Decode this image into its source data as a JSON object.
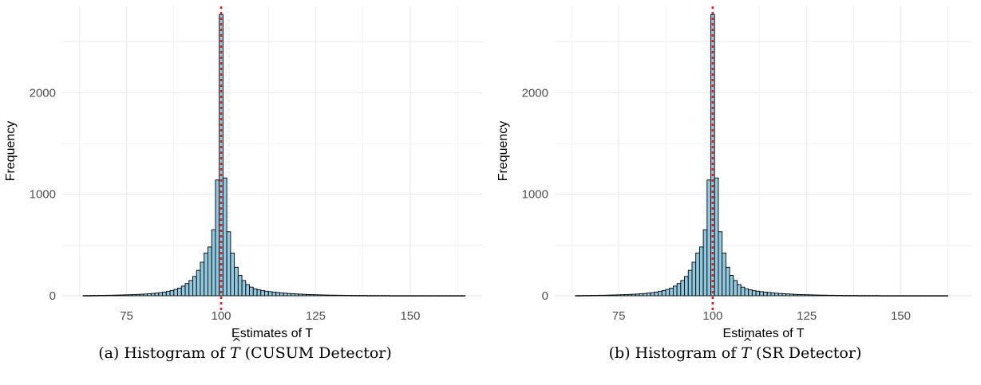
{
  "chart_data": [
    {
      "type": "bar",
      "panel_id": "a",
      "xlabel": "Estimates of T",
      "ylabel": "Frequency",
      "xlim": [
        58,
        169
      ],
      "ylim": [
        0,
        2850
      ],
      "x_ticks": [
        75,
        100,
        125,
        150
      ],
      "y_ticks": [
        0,
        1000,
        2000
      ],
      "reference_line": 100,
      "bin_width": 1,
      "bins": [
        {
          "x": 64,
          "value": 2
        },
        {
          "x": 65,
          "value": 2
        },
        {
          "x": 66,
          "value": 3
        },
        {
          "x": 67,
          "value": 3
        },
        {
          "x": 68,
          "value": 4
        },
        {
          "x": 69,
          "value": 4
        },
        {
          "x": 70,
          "value": 5
        },
        {
          "x": 71,
          "value": 5
        },
        {
          "x": 72,
          "value": 6
        },
        {
          "x": 73,
          "value": 7
        },
        {
          "x": 74,
          "value": 8
        },
        {
          "x": 75,
          "value": 9
        },
        {
          "x": 76,
          "value": 10
        },
        {
          "x": 77,
          "value": 11
        },
        {
          "x": 78,
          "value": 13
        },
        {
          "x": 79,
          "value": 15
        },
        {
          "x": 80,
          "value": 17
        },
        {
          "x": 81,
          "value": 19
        },
        {
          "x": 82,
          "value": 22
        },
        {
          "x": 83,
          "value": 26
        },
        {
          "x": 84,
          "value": 30
        },
        {
          "x": 85,
          "value": 36
        },
        {
          "x": 86,
          "value": 43
        },
        {
          "x": 87,
          "value": 52
        },
        {
          "x": 88,
          "value": 62
        },
        {
          "x": 89,
          "value": 75
        },
        {
          "x": 90,
          "value": 95
        },
        {
          "x": 91,
          "value": 120
        },
        {
          "x": 92,
          "value": 150
        },
        {
          "x": 93,
          "value": 190
        },
        {
          "x": 94,
          "value": 250
        },
        {
          "x": 95,
          "value": 330
        },
        {
          "x": 96,
          "value": 420
        },
        {
          "x": 97,
          "value": 480
        },
        {
          "x": 98,
          "value": 650
        },
        {
          "x": 99,
          "value": 1140
        },
        {
          "x": 100,
          "value": 2770
        },
        {
          "x": 101,
          "value": 1160
        },
        {
          "x": 102,
          "value": 630
        },
        {
          "x": 103,
          "value": 420
        },
        {
          "x": 104,
          "value": 280
        },
        {
          "x": 105,
          "value": 200
        },
        {
          "x": 106,
          "value": 150
        },
        {
          "x": 107,
          "value": 110
        },
        {
          "x": 108,
          "value": 85
        },
        {
          "x": 109,
          "value": 68
        },
        {
          "x": 110,
          "value": 58
        },
        {
          "x": 111,
          "value": 50
        },
        {
          "x": 112,
          "value": 45
        },
        {
          "x": 113,
          "value": 40
        },
        {
          "x": 114,
          "value": 36
        },
        {
          "x": 115,
          "value": 32
        },
        {
          "x": 116,
          "value": 28
        },
        {
          "x": 117,
          "value": 25
        },
        {
          "x": 118,
          "value": 22
        },
        {
          "x": 119,
          "value": 20
        },
        {
          "x": 120,
          "value": 18
        },
        {
          "x": 121,
          "value": 16
        },
        {
          "x": 122,
          "value": 14
        },
        {
          "x": 123,
          "value": 12
        },
        {
          "x": 124,
          "value": 11
        },
        {
          "x": 125,
          "value": 10
        },
        {
          "x": 126,
          "value": 9
        },
        {
          "x": 127,
          "value": 8
        },
        {
          "x": 128,
          "value": 7
        },
        {
          "x": 129,
          "value": 6
        },
        {
          "x": 130,
          "value": 6
        },
        {
          "x": 131,
          "value": 5
        },
        {
          "x": 132,
          "value": 5
        },
        {
          "x": 133,
          "value": 4
        },
        {
          "x": 134,
          "value": 4
        },
        {
          "x": 135,
          "value": 3
        },
        {
          "x": 136,
          "value": 3
        },
        {
          "x": 137,
          "value": 3
        },
        {
          "x": 138,
          "value": 3
        },
        {
          "x": 139,
          "value": 2
        },
        {
          "x": 140,
          "value": 2
        },
        {
          "x": 141,
          "value": 2
        },
        {
          "x": 142,
          "value": 2
        },
        {
          "x": 143,
          "value": 2
        },
        {
          "x": 144,
          "value": 2
        },
        {
          "x": 145,
          "value": 1
        },
        {
          "x": 146,
          "value": 1
        },
        {
          "x": 147,
          "value": 1
        },
        {
          "x": 148,
          "value": 1
        },
        {
          "x": 149,
          "value": 1
        },
        {
          "x": 150,
          "value": 1
        },
        {
          "x": 151,
          "value": 1
        },
        {
          "x": 152,
          "value": 1
        },
        {
          "x": 153,
          "value": 1
        },
        {
          "x": 154,
          "value": 1
        },
        {
          "x": 155,
          "value": 1
        },
        {
          "x": 156,
          "value": 1
        },
        {
          "x": 157,
          "value": 1
        },
        {
          "x": 158,
          "value": 1
        },
        {
          "x": 159,
          "value": 1
        },
        {
          "x": 160,
          "value": 1
        },
        {
          "x": 161,
          "value": 1
        },
        {
          "x": 162,
          "value": 1
        },
        {
          "x": 163,
          "value": 1
        },
        {
          "x": 164,
          "value": 1
        }
      ],
      "caption_prefix": "(a) Histogram of",
      "caption_symbol": "T",
      "caption_suffix": "(CUSUM Detector)"
    },
    {
      "type": "bar",
      "panel_id": "b",
      "xlabel": "Estimates of T",
      "ylabel": "Frequency",
      "xlim": [
        58,
        169
      ],
      "ylim": [
        0,
        2850
      ],
      "x_ticks": [
        75,
        100,
        125,
        150
      ],
      "y_ticks": [
        0,
        1000,
        2000
      ],
      "reference_line": 100,
      "bin_width": 1,
      "bins": [
        {
          "x": 64,
          "value": 2
        },
        {
          "x": 65,
          "value": 2
        },
        {
          "x": 66,
          "value": 3
        },
        {
          "x": 67,
          "value": 3
        },
        {
          "x": 68,
          "value": 4
        },
        {
          "x": 69,
          "value": 4
        },
        {
          "x": 70,
          "value": 5
        },
        {
          "x": 71,
          "value": 5
        },
        {
          "x": 72,
          "value": 6
        },
        {
          "x": 73,
          "value": 7
        },
        {
          "x": 74,
          "value": 8
        },
        {
          "x": 75,
          "value": 9
        },
        {
          "x": 76,
          "value": 10
        },
        {
          "x": 77,
          "value": 11
        },
        {
          "x": 78,
          "value": 13
        },
        {
          "x": 79,
          "value": 15
        },
        {
          "x": 80,
          "value": 17
        },
        {
          "x": 81,
          "value": 19
        },
        {
          "x": 82,
          "value": 22
        },
        {
          "x": 83,
          "value": 26
        },
        {
          "x": 84,
          "value": 30
        },
        {
          "x": 85,
          "value": 36
        },
        {
          "x": 86,
          "value": 43
        },
        {
          "x": 87,
          "value": 52
        },
        {
          "x": 88,
          "value": 62
        },
        {
          "x": 89,
          "value": 75
        },
        {
          "x": 90,
          "value": 95
        },
        {
          "x": 91,
          "value": 120
        },
        {
          "x": 92,
          "value": 150
        },
        {
          "x": 93,
          "value": 190
        },
        {
          "x": 94,
          "value": 250
        },
        {
          "x": 95,
          "value": 330
        },
        {
          "x": 96,
          "value": 420
        },
        {
          "x": 97,
          "value": 480
        },
        {
          "x": 98,
          "value": 650
        },
        {
          "x": 99,
          "value": 1140
        },
        {
          "x": 100,
          "value": 2770
        },
        {
          "x": 101,
          "value": 1160
        },
        {
          "x": 102,
          "value": 630
        },
        {
          "x": 103,
          "value": 420
        },
        {
          "x": 104,
          "value": 280
        },
        {
          "x": 105,
          "value": 200
        },
        {
          "x": 106,
          "value": 150
        },
        {
          "x": 107,
          "value": 110
        },
        {
          "x": 108,
          "value": 85
        },
        {
          "x": 109,
          "value": 68
        },
        {
          "x": 110,
          "value": 58
        },
        {
          "x": 111,
          "value": 50
        },
        {
          "x": 112,
          "value": 45
        },
        {
          "x": 113,
          "value": 40
        },
        {
          "x": 114,
          "value": 36
        },
        {
          "x": 115,
          "value": 32
        },
        {
          "x": 116,
          "value": 28
        },
        {
          "x": 117,
          "value": 25
        },
        {
          "x": 118,
          "value": 22
        },
        {
          "x": 119,
          "value": 20
        },
        {
          "x": 120,
          "value": 18
        },
        {
          "x": 121,
          "value": 16
        },
        {
          "x": 122,
          "value": 14
        },
        {
          "x": 123,
          "value": 12
        },
        {
          "x": 124,
          "value": 11
        },
        {
          "x": 125,
          "value": 10
        },
        {
          "x": 126,
          "value": 9
        },
        {
          "x": 127,
          "value": 8
        },
        {
          "x": 128,
          "value": 7
        },
        {
          "x": 129,
          "value": 6
        },
        {
          "x": 130,
          "value": 6
        },
        {
          "x": 131,
          "value": 5
        },
        {
          "x": 132,
          "value": 5
        },
        {
          "x": 133,
          "value": 4
        },
        {
          "x": 134,
          "value": 4
        },
        {
          "x": 135,
          "value": 3
        },
        {
          "x": 136,
          "value": 3
        },
        {
          "x": 137,
          "value": 3
        },
        {
          "x": 138,
          "value": 3
        },
        {
          "x": 139,
          "value": 2
        },
        {
          "x": 140,
          "value": 2
        },
        {
          "x": 141,
          "value": 2
        },
        {
          "x": 142,
          "value": 2
        },
        {
          "x": 143,
          "value": 2
        },
        {
          "x": 144,
          "value": 2
        },
        {
          "x": 145,
          "value": 1
        },
        {
          "x": 146,
          "value": 1
        },
        {
          "x": 147,
          "value": 1
        },
        {
          "x": 148,
          "value": 1
        },
        {
          "x": 149,
          "value": 1
        },
        {
          "x": 150,
          "value": 1
        },
        {
          "x": 151,
          "value": 1
        },
        {
          "x": 152,
          "value": 1
        },
        {
          "x": 153,
          "value": 1
        },
        {
          "x": 154,
          "value": 1
        },
        {
          "x": 155,
          "value": 1
        },
        {
          "x": 156,
          "value": 1
        },
        {
          "x": 157,
          "value": 1
        },
        {
          "x": 158,
          "value": 1
        },
        {
          "x": 159,
          "value": 1
        },
        {
          "x": 160,
          "value": 1
        },
        {
          "x": 161,
          "value": 1
        },
        {
          "x": 162,
          "value": 1
        }
      ],
      "caption_prefix": "(b) Histogram of",
      "caption_symbol": "T",
      "caption_suffix": "(SR Detector)"
    }
  ],
  "style": {
    "bar_fill": "#8ec9e0",
    "bar_stroke": "#000000",
    "grid_color": "#ebebeb",
    "reference_line_color": "#e41a1c",
    "axis_text_color": "#4d4d4d"
  }
}
